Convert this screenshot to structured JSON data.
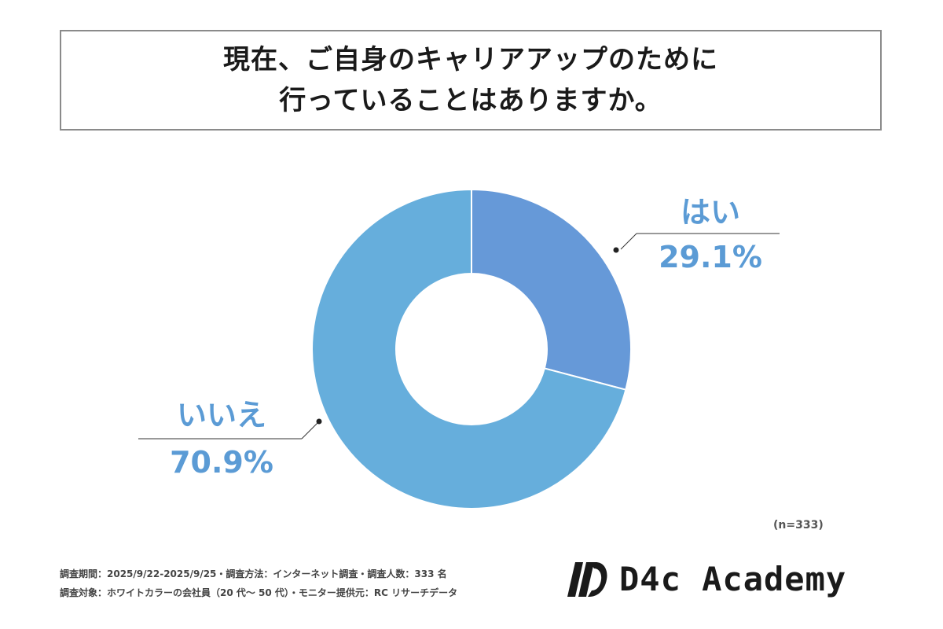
{
  "title": {
    "line1": "現在、ご自身のキャリアアップのために",
    "line2": "行っていることはありますか。"
  },
  "chart_data": {
    "type": "pie",
    "donut": true,
    "categories": [
      "はい",
      "いいえ"
    ],
    "values": [
      29.1,
      70.9
    ],
    "value_labels": [
      "29.1%",
      "70.9%"
    ],
    "colors": [
      "#6699d8",
      "#66aedc"
    ]
  },
  "labels": {
    "yes_name": "はい",
    "yes_value": "29.1%",
    "no_name": "いいえ",
    "no_value": "70.9%",
    "label_color": "#5b9bd5"
  },
  "n_label": "(n=333)",
  "footer": {
    "line1": "調査期間：2025/9/22-2025/9/25・調査方法：インターネット調査・調査人数：333 名",
    "line2": "調査対象：ホワイトカラーの会社員（20 代〜 50 代）・モニター提供元：RC リサーチデータ"
  },
  "logo": {
    "text": "D4c Academy",
    "icon": "d4c-logo-icon"
  }
}
